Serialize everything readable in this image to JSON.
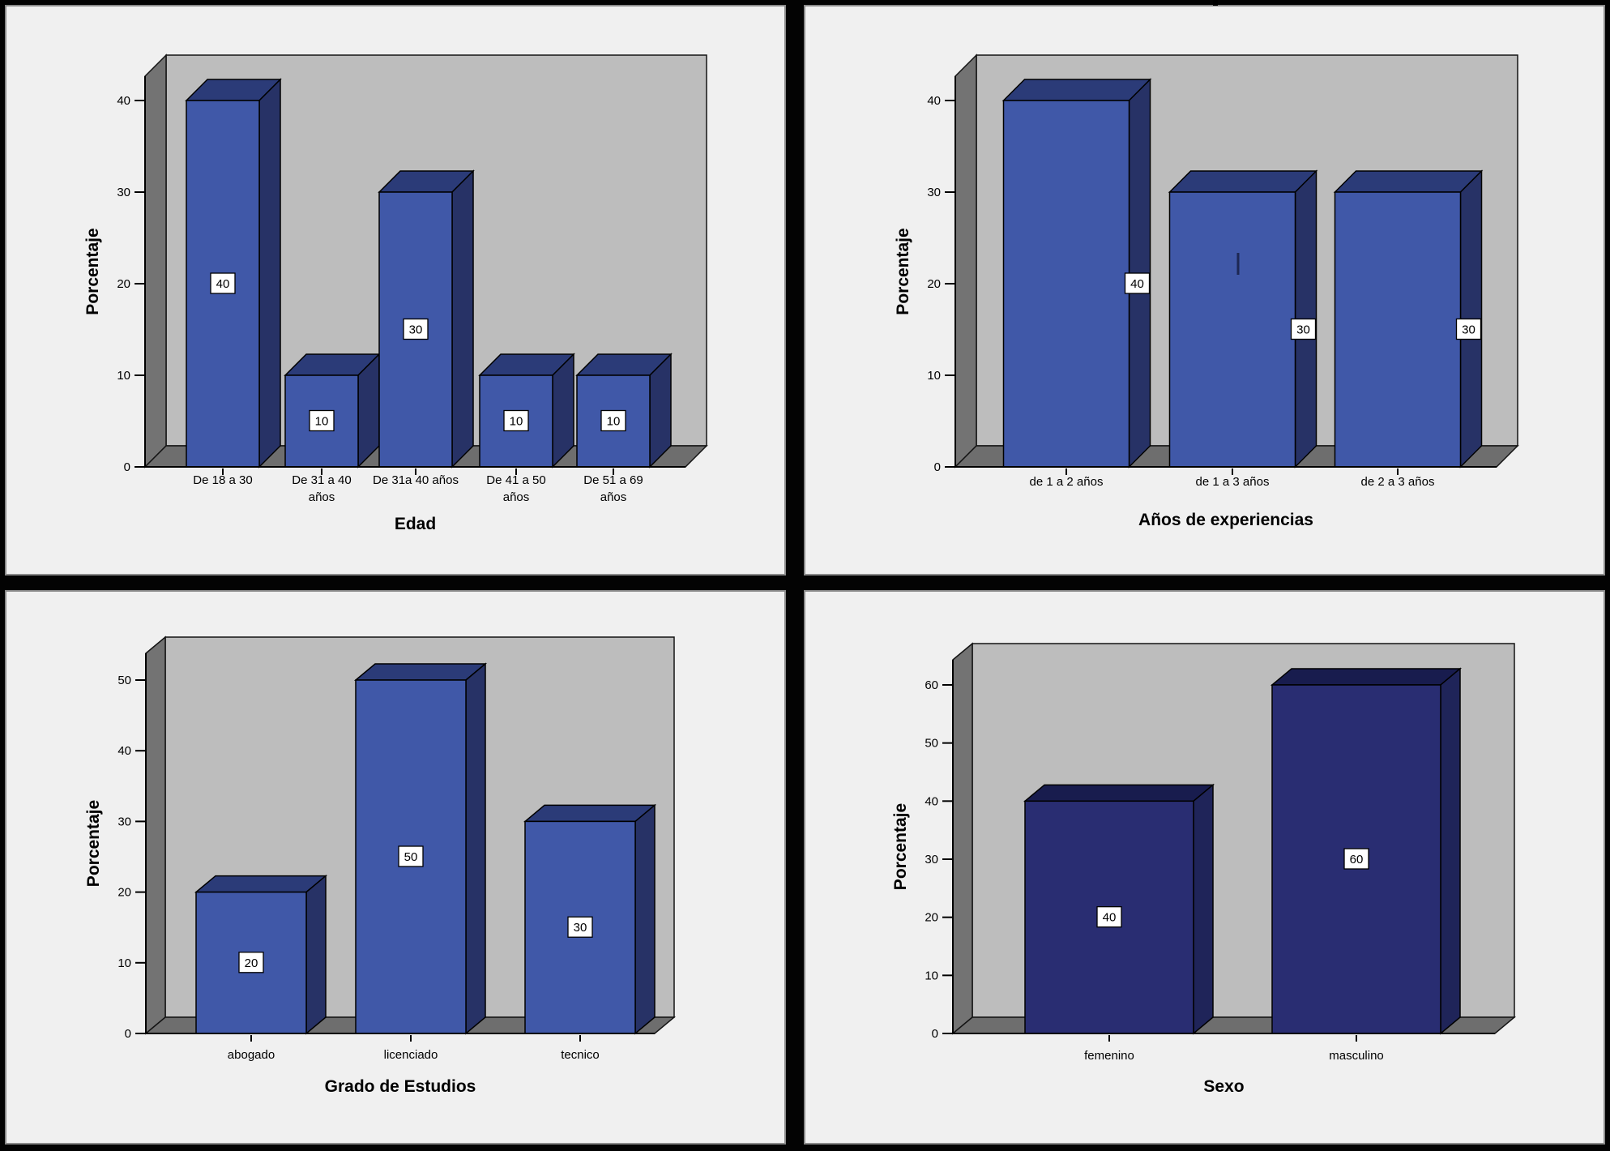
{
  "app": {
    "type": "statistics-output-viewer",
    "layout": "2x2-chart-grid"
  },
  "colors": {
    "page_background": "#000000",
    "panel_background": "#F0F0F0",
    "panel_border": "#8A8A8A",
    "back_wall": "#BDBDBD",
    "left_wall": "#737373",
    "floor": "#6E6E6E",
    "outline": "#141414",
    "label_box_bg": "#FFFFFF",
    "label_box_border": "#000000",
    "text": "#000000",
    "blue_bar_front": "#4058A8",
    "navy_bar_front": "#292D72"
  },
  "chart_data": [
    {
      "type": "bar",
      "style": "3d-column",
      "title": "",
      "xlabel": "Edad",
      "ylabel": "Porcentaje",
      "categories": [
        "De 18 a 30",
        "De 31 a 40 años",
        "De 31a 40 años",
        "De 41 a 50 años",
        "De 51 a 69 años"
      ],
      "values": [
        40,
        10,
        30,
        10,
        10
      ],
      "data_labels": [
        "40",
        "10",
        "30",
        "10",
        "10"
      ],
      "yticks": [
        0,
        10,
        20,
        30,
        40
      ],
      "ylim": [
        0,
        42.5
      ],
      "grid": "off",
      "legend": "none",
      "bar_colors": {
        "front": "#4058A8",
        "top": "#2B3B78",
        "side": "#273266"
      }
    },
    {
      "type": "bar",
      "style": "3d-column",
      "title": "",
      "xlabel": "Años de experiencias",
      "ylabel": "Porcentaje",
      "categories": [
        "de 1 a 2 años",
        "de 1 a 3 años",
        "de 2 a 3 años"
      ],
      "values": [
        40,
        30,
        30
      ],
      "data_labels": [
        "40",
        "30",
        "30"
      ],
      "yticks": [
        0,
        10,
        20,
        30,
        40
      ],
      "ylim": [
        0,
        42.5
      ],
      "grid": "off",
      "legend": "none",
      "bar_colors": {
        "front": "#4058A8",
        "top": "#2B3B78",
        "side": "#273266"
      }
    },
    {
      "type": "bar",
      "style": "3d-column",
      "title": "",
      "xlabel": "Grado de Estudios",
      "ylabel": "Porcentaje",
      "categories": [
        "abogado",
        "licenciado",
        "tecnico"
      ],
      "values": [
        20,
        50,
        30
      ],
      "data_labels": [
        "20",
        "50",
        "30"
      ],
      "yticks": [
        0,
        10,
        20,
        30,
        40,
        50
      ],
      "ylim": [
        0,
        53.5
      ],
      "grid": "off",
      "legend": "none",
      "bar_colors": {
        "front": "#4058A8",
        "top": "#2B3B78",
        "side": "#273266"
      }
    },
    {
      "type": "bar",
      "style": "3d-column",
      "title": "",
      "xlabel": "Sexo",
      "ylabel": "Porcentaje",
      "categories": [
        "femenino",
        "masculino"
      ],
      "values": [
        40,
        60
      ],
      "data_labels": [
        "40",
        "60"
      ],
      "yticks": [
        0,
        10,
        20,
        30,
        40,
        50,
        60
      ],
      "ylim": [
        0,
        64
      ],
      "grid": "off",
      "legend": "none",
      "bar_colors": {
        "front": "#292D72",
        "top": "#181C4E",
        "side": "#1F2459"
      }
    }
  ]
}
